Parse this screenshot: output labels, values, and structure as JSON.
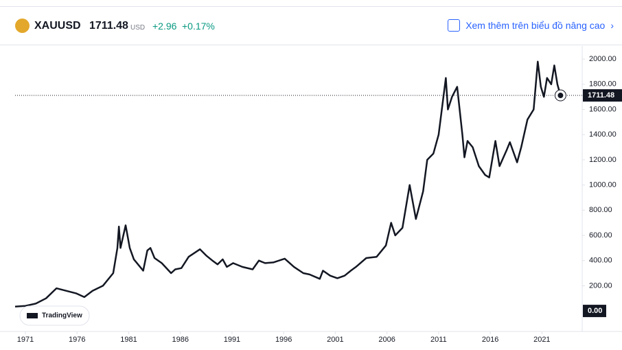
{
  "widget": {
    "symbol": "XAUUSD",
    "currency": "USD",
    "change": "+2.96",
    "change_percent": "+0.17%",
    "link_text": "Xem thêm trên biểu đồ nâng cao",
    "brand": "TradingView"
  },
  "chart_data": {
    "type": "line",
    "color": "#131722",
    "x": [
      1970.0,
      1971.0,
      1972.0,
      1973.0,
      1974.0,
      1975.9,
      1976.7,
      1977.5,
      1978.5,
      1979.5,
      1979.9,
      1980.05,
      1980.2,
      1980.7,
      1981.1,
      1981.5,
      1982.4,
      1982.8,
      1983.1,
      1983.5,
      1984.2,
      1985.1,
      1985.5,
      1986.1,
      1986.8,
      1987.9,
      1988.5,
      1989.1,
      1989.6,
      1990.1,
      1990.5,
      1991.1,
      1992.0,
      1993.0,
      1993.6,
      1994.2,
      1995.0,
      1996.1,
      1997.0,
      1997.9,
      1998.5,
      1999.5,
      1999.8,
      2000.5,
      2001.2,
      2001.9,
      2002.5,
      2003.0,
      2004.0,
      2005.0,
      2005.9,
      2006.4,
      2006.8,
      2007.5,
      2008.2,
      2008.8,
      2009.5,
      2009.9,
      2010.5,
      2011.0,
      2011.7,
      2011.9,
      2012.3,
      2012.8,
      2013.3,
      2013.5,
      2013.8,
      2014.3,
      2014.9,
      2015.5,
      2015.9,
      2016.5,
      2016.9,
      2017.6,
      2017.9,
      2018.6,
      2019.0,
      2019.6,
      2020.2,
      2020.6,
      2020.9,
      2021.2,
      2021.5,
      2021.9,
      2022.2,
      2022.5,
      2022.8
    ],
    "values": [
      35,
      40,
      58,
      100,
      180,
      140,
      110,
      160,
      200,
      300,
      500,
      670,
      500,
      680,
      500,
      410,
      320,
      480,
      500,
      420,
      380,
      300,
      330,
      340,
      430,
      490,
      440,
      400,
      370,
      410,
      350,
      380,
      350,
      330,
      400,
      380,
      385,
      415,
      350,
      300,
      290,
      255,
      320,
      280,
      260,
      280,
      320,
      350,
      420,
      430,
      520,
      700,
      600,
      660,
      1000,
      730,
      950,
      1200,
      1250,
      1400,
      1850,
      1600,
      1700,
      1780,
      1400,
      1220,
      1350,
      1300,
      1150,
      1080,
      1060,
      1350,
      1150,
      1280,
      1340,
      1180,
      1300,
      1520,
      1600,
      1980,
      1780,
      1700,
      1850,
      1800,
      1950,
      1800,
      1711.48
    ],
    "xlim": [
      1970.0,
      2024.9
    ],
    "xticks": [
      1971,
      1976,
      1981,
      1986,
      1991,
      1996,
      2001,
      2006,
      2011,
      2016,
      2021
    ],
    "ylim": [
      -163,
      2104
    ],
    "yticks": [
      {
        "value": 200,
        "label": "200.00"
      },
      {
        "value": 400,
        "label": "400.00"
      },
      {
        "value": 600,
        "label": "600.00"
      },
      {
        "value": 800,
        "label": "800.00"
      },
      {
        "value": 1000,
        "label": "1000.00"
      },
      {
        "value": 1200,
        "label": "1200.00"
      },
      {
        "value": 1400,
        "label": "1400.00"
      },
      {
        "value": 1600,
        "label": "1600.00"
      },
      {
        "value": 1800,
        "label": "1800.00"
      },
      {
        "value": 2000,
        "label": "2000.00"
      }
    ],
    "base_line": {
      "value": 0,
      "label": "0.00"
    },
    "last_value": {
      "value": 1711.48,
      "label": "1711.48"
    }
  }
}
